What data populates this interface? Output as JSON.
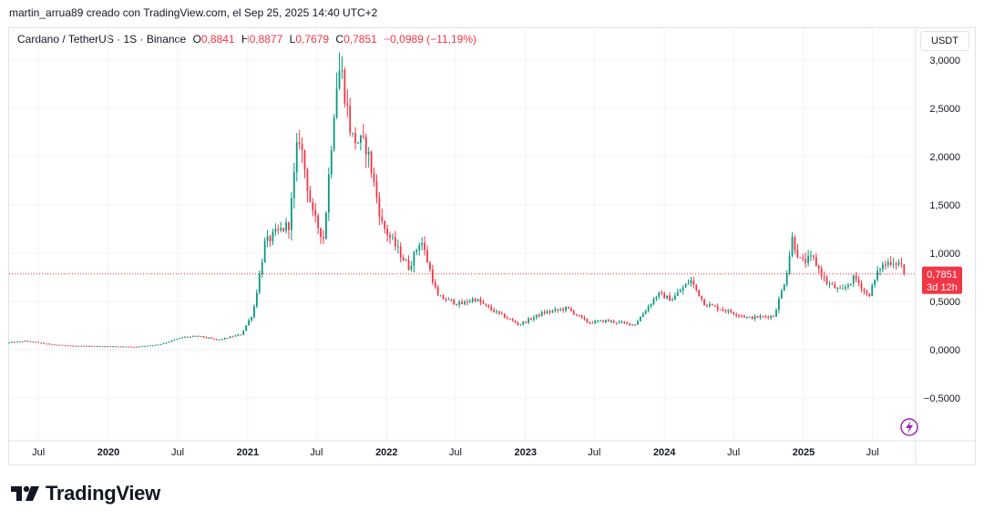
{
  "header": {
    "attribution": "martin_arrua89 creado con TradingView.com, el Sep 25, 2025 14:40 UTC+2"
  },
  "legend": {
    "symbol": "Cardano / TetherUS · 1S · Binance",
    "open_label": "O",
    "open": "0,8841",
    "high_label": "H",
    "high": "0,8877",
    "low_label": "L",
    "low": "0,7679",
    "close_label": "C",
    "close": "0,7851",
    "change": "−0,0989 (−11,19%)"
  },
  "price_axis": {
    "unit": "USDT",
    "last_price": "0,7851",
    "countdown": "3d 12h"
  },
  "brand": {
    "name": "TradingView"
  },
  "colors": {
    "up": "#089981",
    "down": "#f23645",
    "grid": "#f0f3fa",
    "last_line": "#f23645"
  },
  "chart_data": {
    "type": "candlestick",
    "symbol": "ADAUSDT",
    "interval": "1W",
    "y_ticks": [
      "3,0000",
      "2,5000",
      "2,0000",
      "1,5000",
      "1,0000",
      "0,5000",
      "0,0000",
      "−0,5000"
    ],
    "y_tick_values": [
      3.0,
      2.5,
      2.0,
      1.5,
      1.0,
      0.5,
      0.0,
      -0.5
    ],
    "ylim": [
      -0.85,
      3.15
    ],
    "x_ticks": [
      {
        "label": "Jul",
        "date": "2019-07-01",
        "bold": false
      },
      {
        "label": "2020",
        "date": "2020-01-01",
        "bold": true
      },
      {
        "label": "Jul",
        "date": "2020-07-01",
        "bold": false
      },
      {
        "label": "2021",
        "date": "2021-01-01",
        "bold": true
      },
      {
        "label": "Jul",
        "date": "2021-07-01",
        "bold": false
      },
      {
        "label": "2022",
        "date": "2022-01-01",
        "bold": true
      },
      {
        "label": "Jul",
        "date": "2022-07-01",
        "bold": false
      },
      {
        "label": "2023",
        "date": "2023-01-01",
        "bold": true
      },
      {
        "label": "Jul",
        "date": "2023-07-01",
        "bold": false
      },
      {
        "label": "2024",
        "date": "2024-01-01",
        "bold": true
      },
      {
        "label": "Jul",
        "date": "2024-07-01",
        "bold": false
      },
      {
        "label": "2025",
        "date": "2025-01-01",
        "bold": true
      },
      {
        "label": "Jul",
        "date": "2025-07-01",
        "bold": false
      }
    ],
    "x_range": [
      "2019-04-15",
      "2025-10-20"
    ],
    "last_price": 0.7851,
    "price_path": [
      {
        "date": "2019-04-15",
        "close": 0.075
      },
      {
        "date": "2019-06-01",
        "close": 0.09
      },
      {
        "date": "2019-08-01",
        "close": 0.055
      },
      {
        "date": "2019-10-01",
        "close": 0.04
      },
      {
        "date": "2020-01-01",
        "close": 0.035
      },
      {
        "date": "2020-03-15",
        "close": 0.03
      },
      {
        "date": "2020-05-15",
        "close": 0.055
      },
      {
        "date": "2020-07-15",
        "close": 0.13
      },
      {
        "date": "2020-08-25",
        "close": 0.14
      },
      {
        "date": "2020-10-15",
        "close": 0.1
      },
      {
        "date": "2020-12-15",
        "close": 0.16
      },
      {
        "date": "2021-01-15",
        "close": 0.38
      },
      {
        "date": "2021-02-15",
        "close": 1.1
      },
      {
        "date": "2021-03-15",
        "close": 1.2
      },
      {
        "date": "2021-04-20",
        "close": 1.3
      },
      {
        "date": "2021-05-15",
        "close": 2.25
      },
      {
        "date": "2021-06-20",
        "close": 1.4
      },
      {
        "date": "2021-07-20",
        "close": 1.15
      },
      {
        "date": "2021-08-20",
        "close": 2.7
      },
      {
        "date": "2021-09-02",
        "close": 2.95
      },
      {
        "date": "2021-10-01",
        "close": 2.2
      },
      {
        "date": "2021-11-10",
        "close": 2.1
      },
      {
        "date": "2021-12-20",
        "close": 1.3
      },
      {
        "date": "2022-01-20",
        "close": 1.1
      },
      {
        "date": "2022-03-01",
        "close": 0.85
      },
      {
        "date": "2022-04-01",
        "close": 1.15
      },
      {
        "date": "2022-05-15",
        "close": 0.55
      },
      {
        "date": "2022-07-15",
        "close": 0.47
      },
      {
        "date": "2022-08-20",
        "close": 0.53
      },
      {
        "date": "2022-10-01",
        "close": 0.42
      },
      {
        "date": "2022-12-15",
        "close": 0.26
      },
      {
        "date": "2023-02-15",
        "close": 0.38
      },
      {
        "date": "2023-04-20",
        "close": 0.43
      },
      {
        "date": "2023-06-15",
        "close": 0.28
      },
      {
        "date": "2023-08-01",
        "close": 0.3
      },
      {
        "date": "2023-10-15",
        "close": 0.26
      },
      {
        "date": "2023-12-15",
        "close": 0.58
      },
      {
        "date": "2024-01-20",
        "close": 0.52
      },
      {
        "date": "2024-03-10",
        "close": 0.72
      },
      {
        "date": "2024-04-15",
        "close": 0.48
      },
      {
        "date": "2024-06-15",
        "close": 0.4
      },
      {
        "date": "2024-08-10",
        "close": 0.33
      },
      {
        "date": "2024-10-15",
        "close": 0.35
      },
      {
        "date": "2024-11-15",
        "close": 0.75
      },
      {
        "date": "2024-12-02",
        "close": 1.15
      },
      {
        "date": "2024-12-25",
        "close": 0.9
      },
      {
        "date": "2025-01-25",
        "close": 0.95
      },
      {
        "date": "2025-03-01",
        "close": 0.7
      },
      {
        "date": "2025-04-10",
        "close": 0.6
      },
      {
        "date": "2025-05-15",
        "close": 0.75
      },
      {
        "date": "2025-06-20",
        "close": 0.55
      },
      {
        "date": "2025-07-20",
        "close": 0.85
      },
      {
        "date": "2025-08-20",
        "close": 0.92
      },
      {
        "date": "2025-09-18",
        "close": 0.8841
      },
      {
        "date": "2025-09-25",
        "close": 0.7851
      }
    ]
  }
}
